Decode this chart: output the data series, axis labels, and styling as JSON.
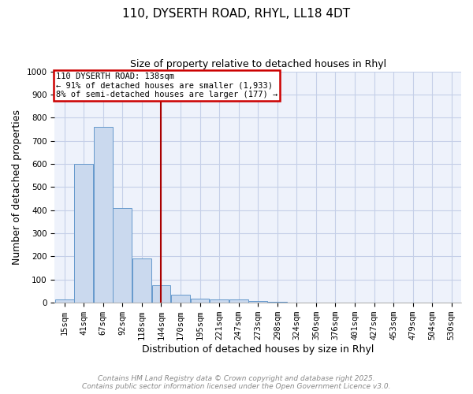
{
  "title_line1": "110, DYSERTH ROAD, RHYL, LL18 4DT",
  "title_line2": "Size of property relative to detached houses in Rhyl",
  "xlabel": "Distribution of detached houses by size in Rhyl",
  "ylabel": "Number of detached properties",
  "categories": [
    "15sqm",
    "41sqm",
    "67sqm",
    "92sqm",
    "118sqm",
    "144sqm",
    "170sqm",
    "195sqm",
    "221sqm",
    "247sqm",
    "273sqm",
    "298sqm",
    "324sqm",
    "350sqm",
    "376sqm",
    "401sqm",
    "427sqm",
    "453sqm",
    "479sqm",
    "504sqm",
    "530sqm"
  ],
  "values": [
    15,
    600,
    760,
    410,
    190,
    75,
    35,
    18,
    13,
    13,
    8,
    5,
    0,
    0,
    0,
    0,
    0,
    0,
    0,
    0,
    0
  ],
  "bar_color": "#cad9ee",
  "bar_edge_color": "#6699cc",
  "vline_index": 5,
  "vline_color": "#aa0000",
  "annotation_line1": "110 DYSERTH ROAD: 138sqm",
  "annotation_line2": "← 91% of detached houses are smaller (1,933)",
  "annotation_line3": "8% of semi-detached houses are larger (177) →",
  "annotation_box_color": "#cc0000",
  "ylim": [
    0,
    1000
  ],
  "yticks": [
    0,
    100,
    200,
    300,
    400,
    500,
    600,
    700,
    800,
    900,
    1000
  ],
  "footer_line1": "Contains HM Land Registry data © Crown copyright and database right 2025.",
  "footer_line2": "Contains public sector information licensed under the Open Government Licence v3.0.",
  "bg_color": "#eef2fb",
  "grid_color": "#c5cfe8",
  "title_fontsize": 11,
  "subtitle_fontsize": 9,
  "axis_label_fontsize": 9,
  "tick_fontsize": 7.5,
  "footer_fontsize": 6.5
}
